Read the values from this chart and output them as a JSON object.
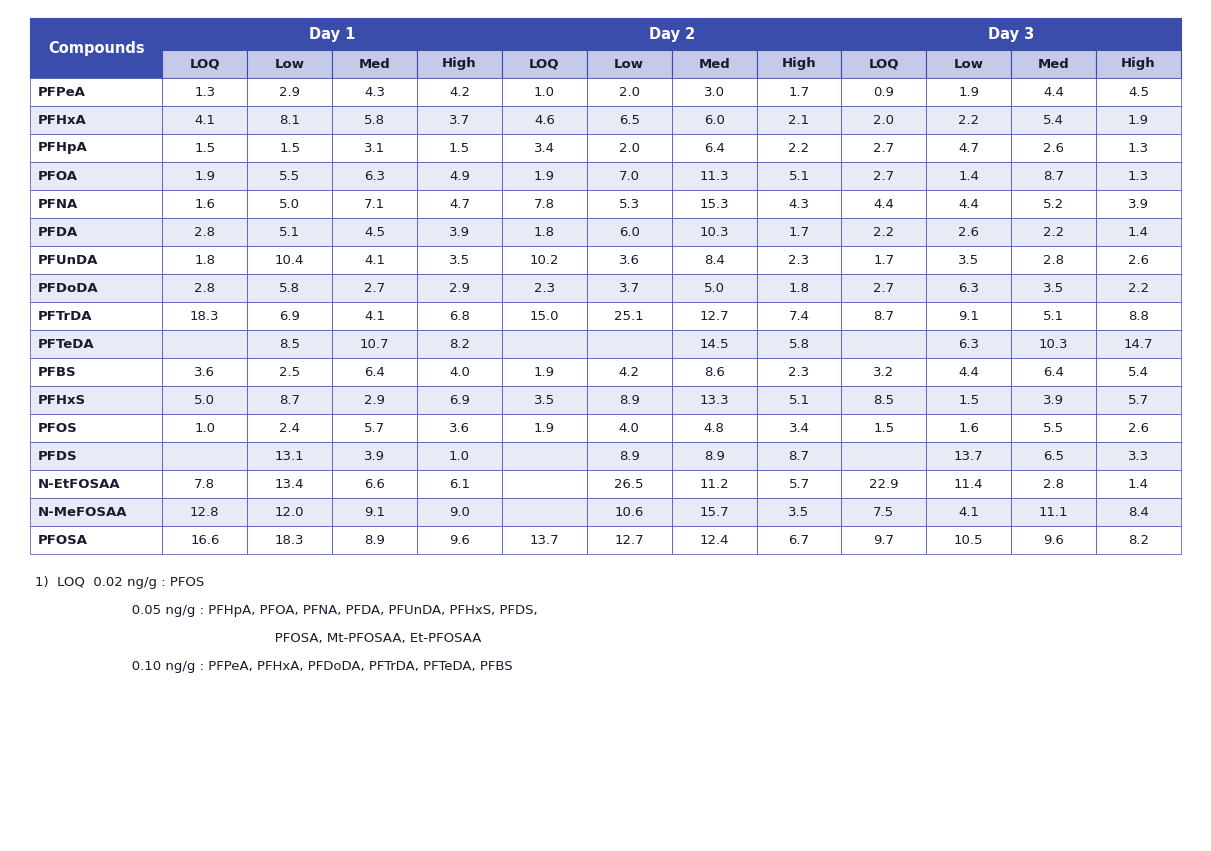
{
  "compounds": [
    "PFPeA",
    "PFHxA",
    "PFHpA",
    "PFOA",
    "PFNA",
    "PFDA",
    "PFUnDA",
    "PFDoDA",
    "PFTrDA",
    "PFTeDA",
    "PFBS",
    "PFHxS",
    "PFOS",
    "PFDS",
    "N-EtFOSAA",
    "N-MeFOSAA",
    "PFOSA"
  ],
  "data": [
    [
      "1.3",
      "2.9",
      "4.3",
      "4.2",
      "1.0",
      "2.0",
      "3.0",
      "1.7",
      "0.9",
      "1.9",
      "4.4",
      "4.5"
    ],
    [
      "4.1",
      "8.1",
      "5.8",
      "3.7",
      "4.6",
      "6.5",
      "6.0",
      "2.1",
      "2.0",
      "2.2",
      "5.4",
      "1.9"
    ],
    [
      "1.5",
      "1.5",
      "3.1",
      "1.5",
      "3.4",
      "2.0",
      "6.4",
      "2.2",
      "2.7",
      "4.7",
      "2.6",
      "1.3"
    ],
    [
      "1.9",
      "5.5",
      "6.3",
      "4.9",
      "1.9",
      "7.0",
      "11.3",
      "5.1",
      "2.7",
      "1.4",
      "8.7",
      "1.3"
    ],
    [
      "1.6",
      "5.0",
      "7.1",
      "4.7",
      "7.8",
      "5.3",
      "15.3",
      "4.3",
      "4.4",
      "4.4",
      "5.2",
      "3.9"
    ],
    [
      "2.8",
      "5.1",
      "4.5",
      "3.9",
      "1.8",
      "6.0",
      "10.3",
      "1.7",
      "2.2",
      "2.6",
      "2.2",
      "1.4"
    ],
    [
      "1.8",
      "10.4",
      "4.1",
      "3.5",
      "10.2",
      "3.6",
      "8.4",
      "2.3",
      "1.7",
      "3.5",
      "2.8",
      "2.6"
    ],
    [
      "2.8",
      "5.8",
      "2.7",
      "2.9",
      "2.3",
      "3.7",
      "5.0",
      "1.8",
      "2.7",
      "6.3",
      "3.5",
      "2.2"
    ],
    [
      "18.3",
      "6.9",
      "4.1",
      "6.8",
      "15.0",
      "25.1",
      "12.7",
      "7.4",
      "8.7",
      "9.1",
      "5.1",
      "8.8"
    ],
    [
      "",
      "8.5",
      "10.7",
      "8.2",
      "",
      "",
      "14.5",
      "5.8",
      "",
      "6.3",
      "10.3",
      "14.7"
    ],
    [
      "3.6",
      "2.5",
      "6.4",
      "4.0",
      "1.9",
      "4.2",
      "8.6",
      "2.3",
      "3.2",
      "4.4",
      "6.4",
      "5.4"
    ],
    [
      "5.0",
      "8.7",
      "2.9",
      "6.9",
      "3.5",
      "8.9",
      "13.3",
      "5.1",
      "8.5",
      "1.5",
      "3.9",
      "5.7"
    ],
    [
      "1.0",
      "2.4",
      "5.7",
      "3.6",
      "1.9",
      "4.0",
      "4.8",
      "3.4",
      "1.5",
      "1.6",
      "5.5",
      "2.6"
    ],
    [
      "",
      "13.1",
      "3.9",
      "1.0",
      "",
      "8.9",
      "8.9",
      "8.7",
      "",
      "13.7",
      "6.5",
      "3.3"
    ],
    [
      "7.8",
      "13.4",
      "6.6",
      "6.1",
      "",
      "26.5",
      "11.2",
      "5.7",
      "22.9",
      "11.4",
      "2.8",
      "1.4"
    ],
    [
      "12.8",
      "12.0",
      "9.1",
      "9.0",
      "",
      "10.6",
      "15.7",
      "3.5",
      "7.5",
      "4.1",
      "11.1",
      "8.4"
    ],
    [
      "16.6",
      "18.3",
      "8.9",
      "9.6",
      "13.7",
      "12.7",
      "12.4",
      "6.7",
      "9.7",
      "10.5",
      "9.6",
      "8.2"
    ]
  ],
  "header_bg": "#3B4DAA",
  "subheader_bg": "#C5CAE9",
  "odd_row_bg": "#FFFFFF",
  "even_row_bg": "#E8EAF6",
  "header_text": "#FFFFFF",
  "subheader_text": "#1a1a2e",
  "data_text": "#1a1a2e",
  "compound_text": "#1a1a2e",
  "border_color": "#3B4DAA",
  "footnote1": "1)  LOQ  0.02 ng/g : PFOS",
  "footnote2": "           0.05 ng/g : PFHpA, PFOA, PFNA, PFDA, PFUnDA, PFHxS, PFDS,",
  "footnote3": "                           PFOSA, Mt-PFOSAA, Et-PFOSAA",
  "footnote4": "           0.10 ng/g : PFPeA, PFHxA, PFDoDA, PFTrDA, PFTeDA, PFBS"
}
